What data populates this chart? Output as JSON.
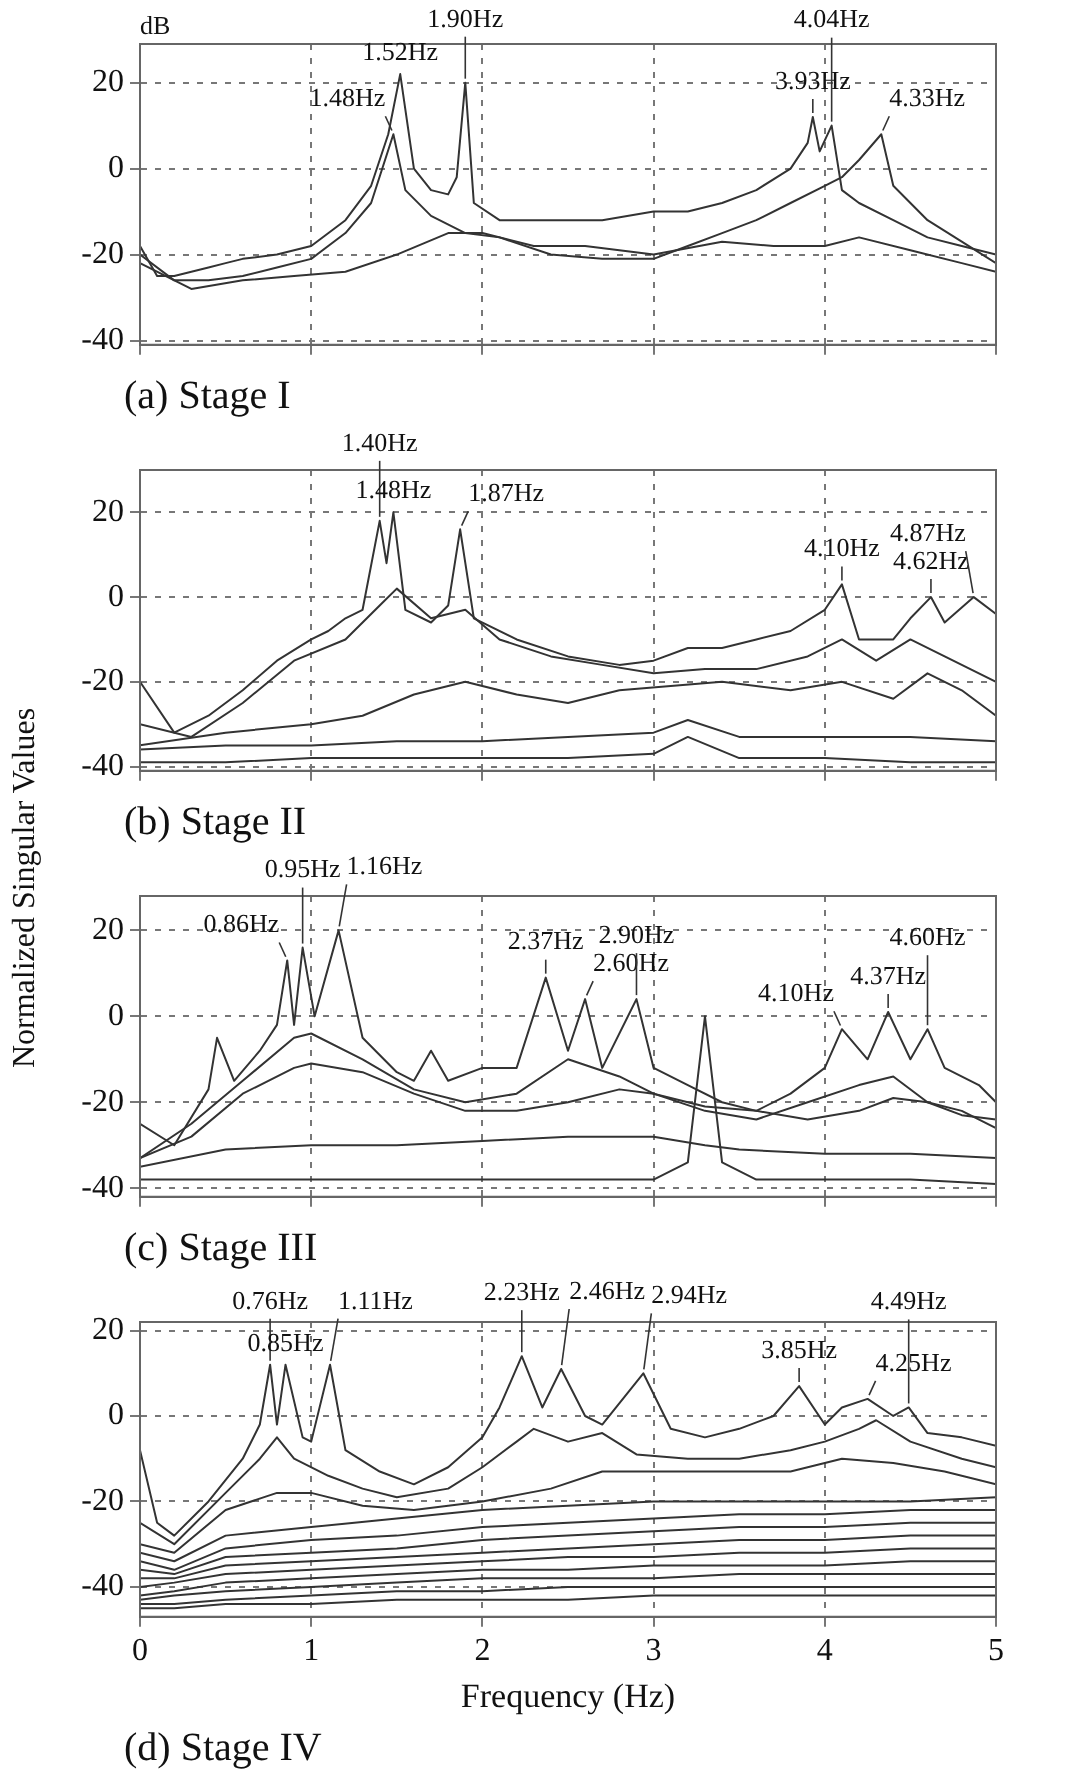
{
  "chart_data": [
    {
      "type": "line",
      "title": "(a) Stage I",
      "annotations": [
        "dB",
        {
          "text": "1.48Hz",
          "x": 1.48,
          "y": 8
        },
        {
          "text": "1.52Hz",
          "x": 1.52,
          "y": 22
        },
        {
          "text": "1.90Hz",
          "x": 1.9,
          "y": 20
        },
        {
          "text": "3.93Hz",
          "x": 3.93,
          "y": 12
        },
        {
          "text": "4.04Hz",
          "x": 4.04,
          "y": 10
        },
        {
          "text": "4.33Hz",
          "x": 4.33,
          "y": 8
        }
      ],
      "xlim": [
        0,
        5
      ],
      "xticks": [
        0,
        1,
        2,
        3,
        4,
        5
      ],
      "ylim": [
        -41,
        29
      ],
      "yticks": [
        -40,
        -20,
        0,
        20
      ],
      "grid": true,
      "tick_labels": "y",
      "series": [
        {
          "color": "#333333",
          "x": [
            0,
            0.1,
            0.2,
            0.3,
            0.4,
            0.5,
            0.6,
            0.8,
            1.0,
            1.2,
            1.35,
            1.45,
            1.52,
            1.6,
            1.7,
            1.8,
            1.85,
            1.9,
            1.95,
            2.1,
            2.4,
            2.7,
            3.0,
            3.2,
            3.4,
            3.6,
            3.8,
            3.9,
            3.93,
            3.97,
            4.04,
            4.1,
            4.2,
            4.4,
            4.6,
            4.8,
            5.0
          ],
          "values": [
            -18,
            -25,
            -25,
            -24,
            -23,
            -22,
            -21,
            -20,
            -18,
            -12,
            -4,
            8,
            22,
            0,
            -5,
            -6,
            -2,
            20,
            -8,
            -12,
            -12,
            -12,
            -10,
            -10,
            -8,
            -5,
            0,
            6,
            12,
            4,
            10,
            -5,
            -8,
            -12,
            -16,
            -18,
            -20
          ]
        },
        {
          "color": "#333333",
          "x": [
            0,
            0.2,
            0.4,
            0.6,
            0.8,
            1.0,
            1.2,
            1.35,
            1.48,
            1.55,
            1.7,
            1.9,
            2.1,
            2.4,
            2.7,
            3.0,
            3.2,
            3.4,
            3.6,
            3.8,
            4.0,
            4.1,
            4.2,
            4.33,
            4.4,
            4.6,
            4.8,
            5.0
          ],
          "values": [
            -20,
            -26,
            -26,
            -25,
            -23,
            -21,
            -15,
            -8,
            8,
            -5,
            -11,
            -15,
            -16,
            -20,
            -21,
            -21,
            -18,
            -15,
            -12,
            -8,
            -4,
            -2,
            2,
            8,
            -4,
            -12,
            -17,
            -22
          ]
        },
        {
          "color": "#333333",
          "x": [
            0,
            0.3,
            0.6,
            0.9,
            1.2,
            1.5,
            1.8,
            2.0,
            2.3,
            2.6,
            3.0,
            3.4,
            3.7,
            4.0,
            4.2,
            4.5,
            4.8,
            5.0
          ],
          "values": [
            -22,
            -28,
            -26,
            -25,
            -24,
            -20,
            -15,
            -15,
            -18,
            -18,
            -20,
            -17,
            -18,
            -18,
            -16,
            -19,
            -22,
            -24
          ]
        }
      ]
    },
    {
      "type": "line",
      "title": "(b) Stage II",
      "annotations": [
        {
          "text": "1.40Hz",
          "x": 1.4,
          "y": 18
        },
        {
          "text": "1.48Hz",
          "x": 1.48,
          "y": 20
        },
        {
          "text": "1.87Hz",
          "x": 1.87,
          "y": 16
        },
        {
          "text": "4.10Hz",
          "x": 4.1,
          "y": 3
        },
        {
          "text": "4.62Hz",
          "x": 4.62,
          "y": 0
        },
        {
          "text": "4.87Hz",
          "x": 4.87,
          "y": 0
        }
      ],
      "xlim": [
        0,
        5
      ],
      "xticks": [
        0,
        1,
        2,
        3,
        4,
        5
      ],
      "ylim": [
        -41,
        30
      ],
      "yticks": [
        -40,
        -20,
        0,
        20
      ],
      "grid": true,
      "tick_labels": "y",
      "series": [
        {
          "color": "#333333",
          "x": [
            0,
            0.2,
            0.4,
            0.6,
            0.8,
            1.0,
            1.1,
            1.2,
            1.3,
            1.4,
            1.44,
            1.48,
            1.55,
            1.7,
            1.8,
            1.87,
            1.95,
            2.2,
            2.5,
            2.8,
            3.0,
            3.2,
            3.4,
            3.6,
            3.8,
            4.0,
            4.1,
            4.2,
            4.4,
            4.5,
            4.62,
            4.7,
            4.87,
            5.0
          ],
          "values": [
            -20,
            -32,
            -28,
            -22,
            -15,
            -10,
            -8,
            -5,
            -3,
            18,
            8,
            20,
            -3,
            -6,
            -2,
            16,
            -5,
            -10,
            -14,
            -16,
            -15,
            -12,
            -12,
            -10,
            -8,
            -3,
            3,
            -10,
            -10,
            -5,
            0,
            -6,
            0,
            -4
          ]
        },
        {
          "color": "#333333",
          "x": [
            0,
            0.3,
            0.6,
            0.9,
            1.2,
            1.4,
            1.5,
            1.7,
            1.9,
            2.1,
            2.4,
            2.7,
            3.0,
            3.3,
            3.6,
            3.9,
            4.1,
            4.3,
            4.5,
            4.7,
            5.0
          ],
          "values": [
            -30,
            -33,
            -25,
            -15,
            -10,
            -2,
            2,
            -5,
            -3,
            -10,
            -14,
            -16,
            -18,
            -17,
            -17,
            -14,
            -10,
            -15,
            -10,
            -14,
            -20
          ]
        },
        {
          "color": "#333333",
          "x": [
            0,
            0.5,
            1.0,
            1.3,
            1.6,
            1.9,
            2.2,
            2.5,
            2.8,
            3.1,
            3.4,
            3.8,
            4.1,
            4.4,
            4.6,
            4.8,
            5.0
          ],
          "values": [
            -35,
            -32,
            -30,
            -28,
            -23,
            -20,
            -23,
            -25,
            -22,
            -21,
            -20,
            -22,
            -20,
            -24,
            -18,
            -22,
            -28
          ]
        },
        {
          "color": "#333333",
          "x": [
            0,
            0.5,
            1.0,
            1.5,
            2.0,
            2.5,
            3.0,
            3.2,
            3.5,
            4.0,
            4.5,
            5.0
          ],
          "values": [
            -36,
            -35,
            -35,
            -34,
            -34,
            -33,
            -32,
            -29,
            -33,
            -33,
            -33,
            -34
          ]
        },
        {
          "color": "#333333",
          "x": [
            0,
            0.5,
            1.0,
            1.5,
            2.0,
            2.5,
            3.0,
            3.2,
            3.5,
            4.0,
            4.5,
            5.0
          ],
          "values": [
            -39,
            -39,
            -38,
            -38,
            -38,
            -38,
            -37,
            -33,
            -38,
            -38,
            -39,
            -39
          ]
        }
      ]
    },
    {
      "type": "line",
      "title": "(c) Stage III",
      "ylabel": "Normalized Singular Values",
      "annotations": [
        {
          "text": "0.86Hz",
          "x": 0.86,
          "y": 13
        },
        {
          "text": "0.95Hz",
          "x": 0.95,
          "y": 16
        },
        {
          "text": "1.16Hz",
          "x": 1.16,
          "y": 20
        },
        {
          "text": "2.37Hz",
          "x": 2.37,
          "y": 9
        },
        {
          "text": "2.60Hz",
          "x": 2.6,
          "y": 4
        },
        {
          "text": "2.90Hz",
          "x": 2.9,
          "y": 4
        },
        {
          "text": "4.10Hz",
          "x": 4.1,
          "y": -3
        },
        {
          "text": "4.37Hz",
          "x": 4.37,
          "y": 1
        },
        {
          "text": "4.60Hz",
          "x": 4.6,
          "y": -3
        }
      ],
      "xlim": [
        0,
        5
      ],
      "xticks": [
        0,
        1,
        2,
        3,
        4,
        5
      ],
      "ylim": [
        -42,
        28
      ],
      "yticks": [
        -40,
        -20,
        0,
        20
      ],
      "grid": true,
      "tick_labels": "y",
      "series": [
        {
          "color": "#333333",
          "x": [
            0,
            0.2,
            0.4,
            0.45,
            0.55,
            0.7,
            0.8,
            0.86,
            0.9,
            0.95,
            1.02,
            1.16,
            1.3,
            1.5,
            1.6,
            1.7,
            1.8,
            2.0,
            2.2,
            2.37,
            2.5,
            2.6,
            2.7,
            2.9,
            3.0,
            3.2,
            3.4,
            3.6,
            3.8,
            4.0,
            4.1,
            4.25,
            4.37,
            4.5,
            4.6,
            4.7,
            4.9,
            5.0
          ],
          "values": [
            -25,
            -30,
            -17,
            -5,
            -15,
            -8,
            -2,
            13,
            -2,
            16,
            0,
            20,
            -5,
            -13,
            -15,
            -8,
            -15,
            -12,
            -12,
            9,
            -8,
            4,
            -12,
            4,
            -12,
            -16,
            -20,
            -22,
            -18,
            -12,
            -3,
            -10,
            1,
            -10,
            -3,
            -12,
            -16,
            -20
          ]
        },
        {
          "color": "#333333",
          "x": [
            0,
            0.3,
            0.6,
            0.9,
            1.0,
            1.3,
            1.6,
            1.9,
            2.2,
            2.5,
            2.8,
            3.0,
            3.3,
            3.6,
            3.9,
            4.2,
            4.4,
            4.6,
            4.8,
            5.0
          ],
          "values": [
            -33,
            -25,
            -15,
            -5,
            -4,
            -10,
            -17,
            -20,
            -18,
            -10,
            -14,
            -18,
            -22,
            -24,
            -20,
            -16,
            -14,
            -20,
            -22,
            -26
          ]
        },
        {
          "color": "#333333",
          "x": [
            0,
            0.3,
            0.6,
            0.9,
            1.0,
            1.3,
            1.6,
            1.9,
            2.2,
            2.5,
            2.8,
            3.0,
            3.3,
            3.6,
            3.9,
            4.2,
            4.4,
            4.6,
            4.8,
            5.0
          ],
          "values": [
            -33,
            -28,
            -18,
            -12,
            -11,
            -13,
            -18,
            -22,
            -22,
            -20,
            -17,
            -18,
            -21,
            -22,
            -24,
            -22,
            -19,
            -20,
            -23,
            -24
          ]
        },
        {
          "color": "#333333",
          "x": [
            0,
            0.5,
            1.0,
            1.5,
            2.0,
            2.5,
            3.0,
            3.3,
            3.5,
            4.0,
            4.5,
            5.0
          ],
          "values": [
            -35,
            -31,
            -30,
            -30,
            -29,
            -28,
            -28,
            -30,
            -31,
            -32,
            -32,
            -33
          ]
        },
        {
          "color": "#333333",
          "x": [
            0,
            0.5,
            1.0,
            1.5,
            2.0,
            2.5,
            3.0,
            3.2,
            3.3,
            3.4,
            3.6,
            4.0,
            4.5,
            5.0
          ],
          "values": [
            -38,
            -38,
            -38,
            -38,
            -38,
            -38,
            -38,
            -34,
            0,
            -34,
            -38,
            -38,
            -38,
            -39
          ]
        }
      ]
    },
    {
      "type": "line",
      "title": "(d) Stage IV",
      "xlabel": "Frequency (Hz)",
      "annotations": [
        {
          "text": "0.76Hz",
          "x": 0.76,
          "y": 12
        },
        {
          "text": "0.85Hz",
          "x": 0.85,
          "y": 12
        },
        {
          "text": "1.11Hz",
          "x": 1.11,
          "y": 12
        },
        {
          "text": "2.23Hz",
          "x": 2.23,
          "y": 14
        },
        {
          "text": "2.46Hz",
          "x": 2.46,
          "y": 11
        },
        {
          "text": "2.94Hz",
          "x": 2.94,
          "y": 10
        },
        {
          "text": "3.85Hz",
          "x": 3.85,
          "y": 7
        },
        {
          "text": "4.25Hz",
          "x": 4.25,
          "y": 4
        },
        {
          "text": "4.49Hz",
          "x": 4.49,
          "y": 2
        }
      ],
      "xlim": [
        0,
        5
      ],
      "xticks": [
        0,
        1,
        2,
        3,
        4,
        5
      ],
      "ylim": [
        -47,
        22
      ],
      "yticks": [
        -40,
        -20,
        0,
        20
      ],
      "grid": true,
      "series": [
        {
          "color": "#333333",
          "x": [
            0,
            0.1,
            0.2,
            0.4,
            0.6,
            0.7,
            0.76,
            0.8,
            0.85,
            0.95,
            1.0,
            1.11,
            1.2,
            1.4,
            1.6,
            1.8,
            2.0,
            2.1,
            2.23,
            2.35,
            2.46,
            2.6,
            2.7,
            2.94,
            3.1,
            3.3,
            3.5,
            3.7,
            3.85,
            4.0,
            4.1,
            4.25,
            4.4,
            4.49,
            4.6,
            4.8,
            5.0
          ],
          "values": [
            -8,
            -25,
            -28,
            -20,
            -10,
            -2,
            12,
            -2,
            12,
            -5,
            -6,
            12,
            -8,
            -13,
            -16,
            -12,
            -5,
            2,
            14,
            2,
            11,
            0,
            -2,
            10,
            -3,
            -5,
            -3,
            0,
            7,
            -2,
            2,
            4,
            0,
            2,
            -4,
            -5,
            -7
          ]
        },
        {
          "color": "#333333",
          "x": [
            0,
            0.2,
            0.5,
            0.7,
            0.8,
            0.9,
            1.1,
            1.3,
            1.5,
            1.8,
            2.0,
            2.2,
            2.3,
            2.5,
            2.7,
            2.9,
            3.2,
            3.5,
            3.8,
            4.0,
            4.2,
            4.3,
            4.5,
            4.8,
            5.0
          ],
          "values": [
            -25,
            -30,
            -18,
            -10,
            -5,
            -10,
            -14,
            -17,
            -19,
            -17,
            -12,
            -6,
            -3,
            -6,
            -4,
            -9,
            -10,
            -10,
            -8,
            -6,
            -3,
            -1,
            -6,
            -10,
            -12
          ]
        },
        {
          "color": "#333333",
          "x": [
            0,
            0.2,
            0.5,
            0.8,
            1.0,
            1.3,
            1.6,
            2.0,
            2.4,
            2.7,
            3.0,
            3.5,
            3.8,
            4.1,
            4.4,
            4.7,
            5.0
          ],
          "values": [
            -30,
            -32,
            -22,
            -18,
            -18,
            -21,
            -22,
            -20,
            -17,
            -13,
            -13,
            -13,
            -13,
            -10,
            -11,
            -13,
            -16
          ]
        },
        {
          "color": "#333333",
          "x": [
            0,
            0.2,
            0.5,
            1,
            1.5,
            2,
            2.5,
            3,
            3.5,
            4,
            4.5,
            5
          ],
          "values": [
            -32,
            -34,
            -28,
            -26,
            -24,
            -22,
            -21,
            -20,
            -20,
            -20,
            -20,
            -19
          ]
        },
        {
          "color": "#333333",
          "x": [
            0,
            0.2,
            0.5,
            1,
            1.5,
            2,
            2.5,
            3,
            3.5,
            4,
            4.5,
            5
          ],
          "values": [
            -34,
            -36,
            -31,
            -29,
            -28,
            -26,
            -25,
            -24,
            -23,
            -23,
            -22,
            -22
          ]
        },
        {
          "color": "#333333",
          "x": [
            0,
            0.2,
            0.5,
            1,
            1.5,
            2,
            2.5,
            3,
            3.5,
            4,
            4.5,
            5
          ],
          "values": [
            -36,
            -37,
            -33,
            -32,
            -31,
            -29,
            -28,
            -27,
            -26,
            -26,
            -25,
            -25
          ]
        },
        {
          "color": "#333333",
          "x": [
            0,
            0.2,
            0.5,
            1,
            1.5,
            2,
            2.5,
            3,
            3.5,
            4,
            4.5,
            5
          ],
          "values": [
            -38,
            -38,
            -35,
            -34,
            -33,
            -32,
            -31,
            -30,
            -29,
            -29,
            -28,
            -28
          ]
        },
        {
          "color": "#333333",
          "x": [
            0,
            0.2,
            0.5,
            1,
            1.5,
            2,
            2.5,
            3,
            3.5,
            4,
            4.5,
            5
          ],
          "values": [
            -40,
            -39,
            -37,
            -36,
            -35,
            -34,
            -33,
            -33,
            -32,
            -32,
            -31,
            -31
          ]
        },
        {
          "color": "#333333",
          "x": [
            0,
            0.2,
            0.5,
            1,
            1.5,
            2,
            2.5,
            3,
            3.5,
            4,
            4.5,
            5
          ],
          "values": [
            -42,
            -41,
            -39,
            -38,
            -37,
            -36,
            -36,
            -35,
            -35,
            -35,
            -34,
            -34
          ]
        },
        {
          "color": "#333333",
          "x": [
            0,
            0.2,
            0.5,
            1,
            1.5,
            2,
            2.5,
            3,
            3.5,
            4,
            4.5,
            5
          ],
          "values": [
            -43,
            -42,
            -41,
            -40,
            -39,
            -38,
            -38,
            -38,
            -37,
            -37,
            -37,
            -37
          ]
        },
        {
          "color": "#333333",
          "x": [
            0,
            0.2,
            0.5,
            1,
            1.5,
            2,
            2.5,
            3,
            3.5,
            4,
            4.5,
            5
          ],
          "values": [
            -44,
            -44,
            -43,
            -42,
            -41,
            -41,
            -40,
            -40,
            -40,
            -40,
            -40,
            -40
          ]
        },
        {
          "color": "#333333",
          "x": [
            0,
            0.2,
            0.5,
            1,
            1.5,
            2,
            2.5,
            3,
            3.5,
            4,
            4.5,
            5
          ],
          "values": [
            -45,
            -45,
            -44,
            -44,
            -43,
            -43,
            -43,
            -42,
            -42,
            -42,
            -42,
            -42
          ]
        }
      ]
    }
  ]
}
